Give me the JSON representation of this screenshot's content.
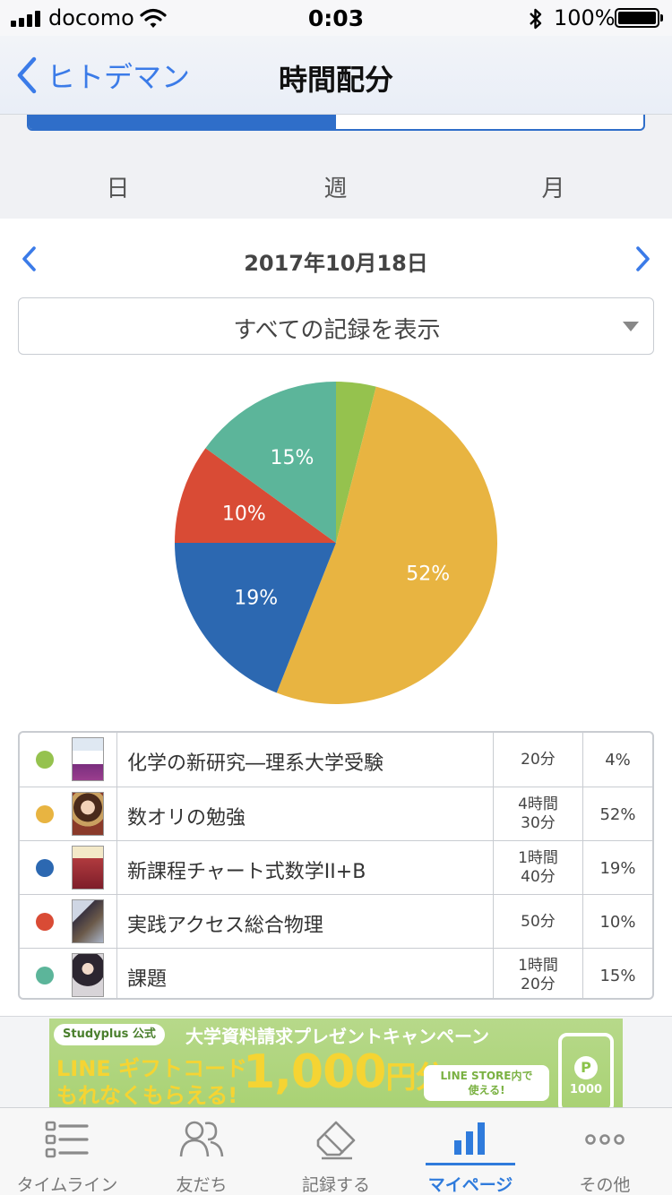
{
  "status_bar": {
    "carrier": "docomo",
    "time": "0:03",
    "battery": "100%"
  },
  "nav": {
    "back_label": "ヒトデマン",
    "title": "時間配分"
  },
  "progress": {
    "fraction": 0.5
  },
  "period_tabs": [
    {
      "label": "日",
      "active": true
    },
    {
      "label": "週",
      "active": false
    },
    {
      "label": "月",
      "active": false
    }
  ],
  "date": "2017年10月18日",
  "filter": {
    "selected": "すべての記録を表示"
  },
  "chart_data": {
    "type": "pie",
    "slices": [
      {
        "label": "化学の新研究―理系大学受験",
        "percent": 4,
        "color": "#95c24e"
      },
      {
        "label": "数オリの勉強",
        "percent": 52,
        "color": "#e8b441"
      },
      {
        "label": "新課程チャート式数学II+B",
        "percent": 19,
        "color": "#2c68b1"
      },
      {
        "label": "実践アクセス総合物理",
        "percent": 10,
        "color": "#d94b35"
      },
      {
        "label": "課題",
        "percent": 15,
        "color": "#5cb59a"
      }
    ],
    "data_labels": [
      "",
      "52%",
      "19%",
      "10%",
      "15%"
    ]
  },
  "records": [
    {
      "title": "化学の新研究―理系大学受験",
      "time": "20分",
      "percent": "4%",
      "color": "#95c24e",
      "thumb": "book-cover-chemistry"
    },
    {
      "title": "数オリの勉強",
      "time": "4時間\n30分",
      "percent": "52%",
      "color": "#e8b441",
      "thumb": "anime-character-thumbnail"
    },
    {
      "title": "新課程チャート式数学II+B",
      "time": "1時間\n40分",
      "percent": "19%",
      "color": "#2c68b1",
      "thumb": "book-cover-math"
    },
    {
      "title": "実践アクセス総合物理",
      "time": "50分",
      "percent": "10%",
      "color": "#d94b35",
      "thumb": "anime-character-thumbnail"
    },
    {
      "title": "課題",
      "time": "1時間\n20分",
      "percent": "15%",
      "color": "#5cb59a",
      "thumb": "anime-character-thumbnail"
    }
  ],
  "banner": {
    "badge": "Studyplus 公式",
    "headline": "大学資料請求プレゼントキャンペーン",
    "line1": "LINE ギフトコード",
    "line2": "もれなくもらえる!",
    "amount": "1,000",
    "amount_unit": "円分",
    "store_note": "LINE STORE内で\n使える!",
    "coin_value": "1000"
  },
  "tab_bar": [
    {
      "label": "タイムライン",
      "icon": "timeline-icon",
      "active": false
    },
    {
      "label": "友だち",
      "icon": "friends-icon",
      "active": false
    },
    {
      "label": "記録する",
      "icon": "record-icon",
      "active": false
    },
    {
      "label": "マイページ",
      "icon": "mypage-chart-icon",
      "active": true
    },
    {
      "label": "その他",
      "icon": "more-dots-icon",
      "active": false
    }
  ],
  "colors": {
    "accent": "#3b7be8",
    "tab_active": "#2f7bdc"
  }
}
